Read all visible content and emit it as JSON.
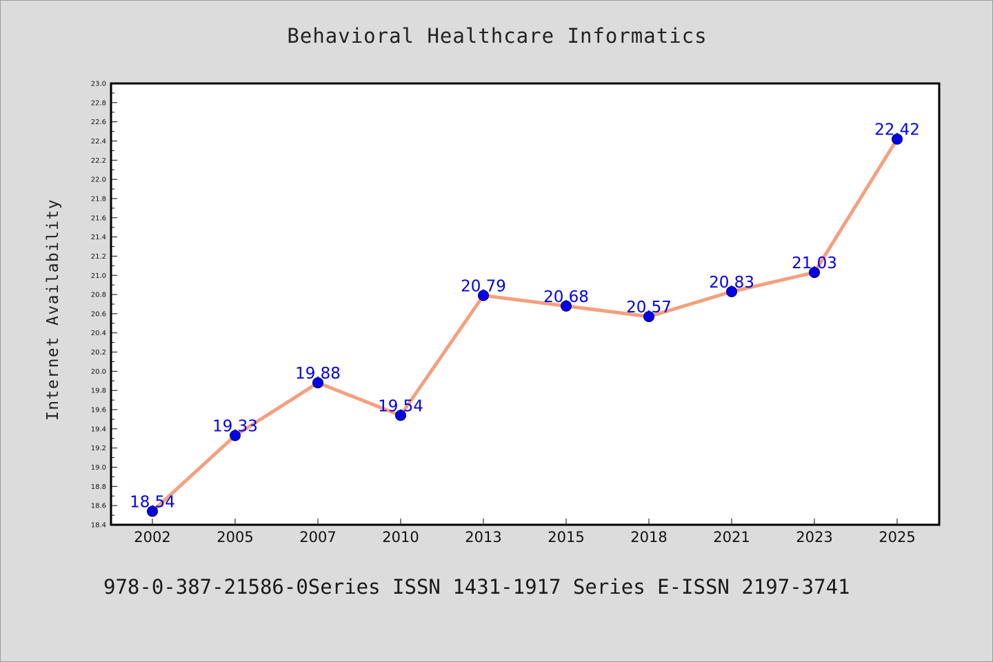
{
  "chart_data": {
    "type": "line",
    "title": "Behavioral Healthcare Informatics",
    "xlabel": "",
    "ylabel": "Internet Availability",
    "categories": [
      "2002",
      "2005",
      "2007",
      "2010",
      "2013",
      "2015",
      "2018",
      "2021",
      "2023",
      "2025"
    ],
    "series": [
      {
        "values": [
          18.54,
          19.33,
          19.88,
          19.54,
          20.79,
          20.68,
          20.57,
          20.83,
          21.03,
          22.42
        ]
      }
    ],
    "ylim": [
      18.4,
      23.0
    ],
    "yticks": [
      "18.4",
      "18.6",
      "18.8",
      "19.0",
      "19.2",
      "19.4",
      "19.6",
      "19.8",
      "20.0",
      "20.2",
      "20.4",
      "20.6",
      "20.8",
      "21.0",
      "21.2",
      "21.4",
      "21.6",
      "21.8",
      "22.0",
      "22.2",
      "22.4",
      "22.6",
      "22.8",
      "23.0"
    ],
    "data_labels": [
      "18.54",
      "19.33",
      "19.88",
      "19.54",
      "20.79",
      "20.68",
      "20.57",
      "20.83",
      "21.03",
      "22.42"
    ],
    "grid": false,
    "line_color": "#f4a07e",
    "marker_color": "#0000ee",
    "label_color": "#0000ee"
  },
  "footer": {
    "text": "978-0-387-21586-0Series ISSN 1431-1917 Series E-ISSN 2197-3741"
  }
}
